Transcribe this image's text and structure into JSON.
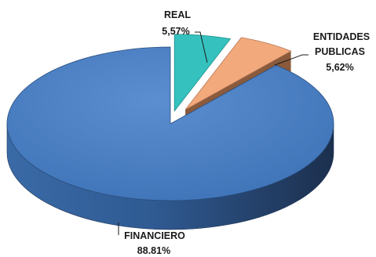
{
  "chart_data": {
    "type": "pie",
    "slices": [
      {
        "category": "FINANCIERO",
        "value": 88.81,
        "label_value": "88.81%",
        "color": "#4f81bd"
      },
      {
        "category": "REAL",
        "value": 5.57,
        "label_value": "5,57%",
        "color": "#35c2be"
      },
      {
        "category": "ENTIDADES PUBLICAS",
        "category_lines": [
          "ENTIDADES",
          "PUBLICAS"
        ],
        "value": 5.62,
        "label_value": "5,62%",
        "color": "#f2a97c"
      }
    ],
    "exploded": true,
    "style_3d": true,
    "legend": "none"
  }
}
